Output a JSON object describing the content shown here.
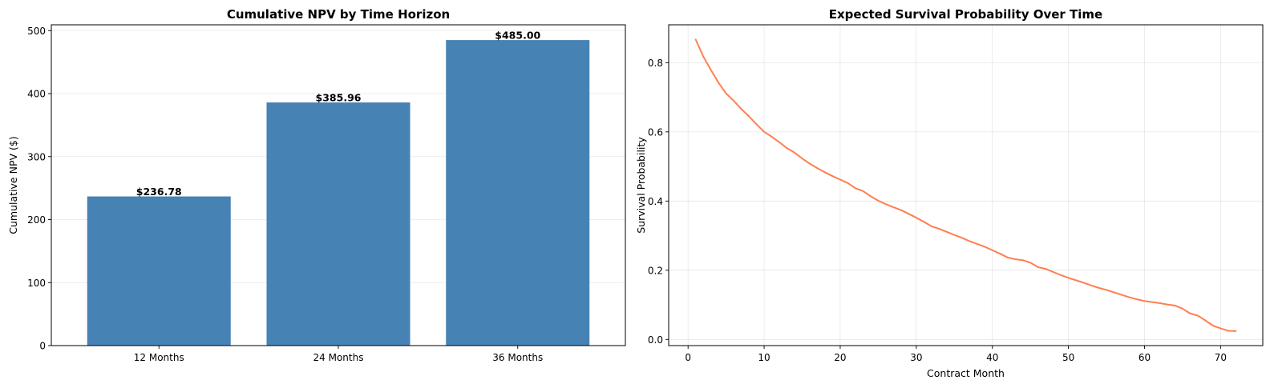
{
  "chart_data": [
    {
      "type": "bar",
      "title": "Cumulative NPV by Time Horizon",
      "xlabel": "",
      "ylabel": "Cumulative NPV ($)",
      "categories": [
        "12 Months",
        "24 Months",
        "36 Months"
      ],
      "values": [
        236.78,
        385.96,
        485.0
      ],
      "value_labels": [
        "$236.78",
        "$385.96",
        "$485.00"
      ],
      "ylim": [
        0,
        509.25
      ],
      "yticks": [
        0,
        100,
        200,
        300,
        400,
        500
      ],
      "grid": "y",
      "color": "#4682b4"
    },
    {
      "type": "line",
      "title": "Expected Survival Probability Over Time",
      "xlabel": "Contract Month",
      "ylabel": "Survival Probability",
      "xlim": [
        -2.55,
        75.55
      ],
      "ylim": [
        -0.0178,
        0.9095
      ],
      "xticks": [
        0,
        10,
        20,
        30,
        40,
        50,
        60,
        70
      ],
      "yticks": [
        0.0,
        0.2,
        0.4,
        0.6,
        0.8
      ],
      "ytick_labels": [
        "0.0",
        "0.2",
        "0.4",
        "0.6",
        "0.8"
      ],
      "grid": "both",
      "color": "#ff7f50",
      "x": [
        1,
        2,
        3,
        4,
        5,
        6,
        7,
        8,
        9,
        10,
        11,
        12,
        13,
        14,
        15,
        16,
        17,
        18,
        19,
        20,
        21,
        22,
        23,
        24,
        25,
        26,
        27,
        28,
        29,
        30,
        31,
        32,
        33,
        34,
        35,
        36,
        37,
        38,
        39,
        40,
        41,
        42,
        43,
        44,
        45,
        46,
        47,
        48,
        49,
        50,
        51,
        52,
        53,
        54,
        55,
        56,
        57,
        58,
        59,
        60,
        61,
        62,
        63,
        64,
        65,
        66,
        67,
        68,
        69,
        70,
        71,
        72
      ],
      "y": [
        0.867,
        0.818,
        0.779,
        0.742,
        0.711,
        0.69,
        0.666,
        0.645,
        0.622,
        0.6,
        0.586,
        0.57,
        0.553,
        0.54,
        0.523,
        0.508,
        0.495,
        0.483,
        0.472,
        0.462,
        0.452,
        0.437,
        0.429,
        0.414,
        0.401,
        0.391,
        0.382,
        0.374,
        0.363,
        0.352,
        0.34,
        0.327,
        0.32,
        0.311,
        0.302,
        0.294,
        0.284,
        0.276,
        0.268,
        0.258,
        0.248,
        0.237,
        0.232,
        0.229,
        0.222,
        0.209,
        0.204,
        0.195,
        0.186,
        0.178,
        0.171,
        0.164,
        0.156,
        0.149,
        0.143,
        0.136,
        0.129,
        0.122,
        0.116,
        0.111,
        0.108,
        0.105,
        0.101,
        0.098,
        0.089,
        0.075,
        0.069,
        0.055,
        0.04,
        0.032,
        0.025,
        0.024
      ]
    }
  ]
}
